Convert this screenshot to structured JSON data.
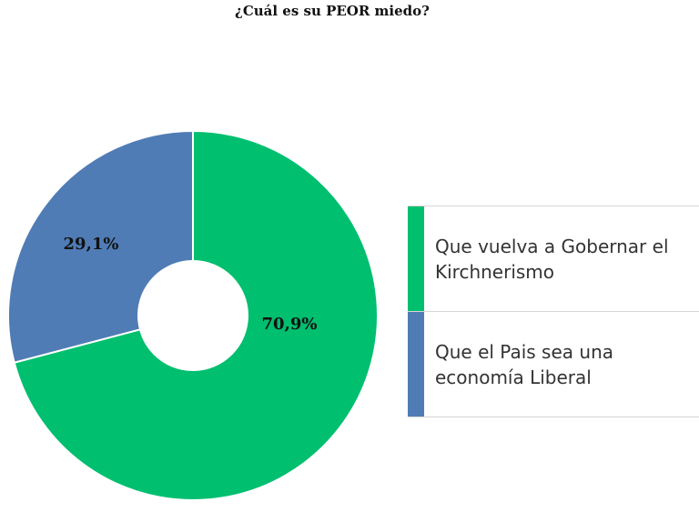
{
  "chart_data": {
    "type": "pie",
    "title": "¿Cuál es su PEOR miedo?",
    "categories": [
      "Que vuelva a Gobernar el Kirchnerismo",
      "Que el Pais sea una economía Liberal"
    ],
    "values": [
      70.9,
      29.1
    ],
    "value_labels": [
      "70,9%",
      "29,1%"
    ],
    "colors": [
      "#00bf6f",
      "#507cb6"
    ],
    "donut": true,
    "legend": "right"
  }
}
